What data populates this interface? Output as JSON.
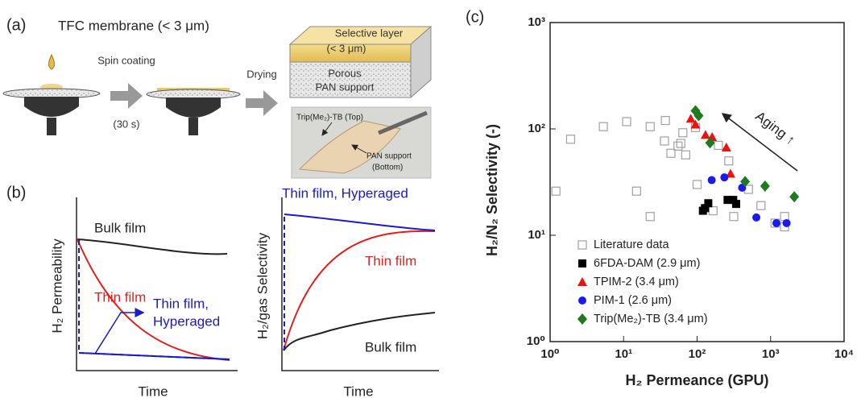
{
  "panel_a": {
    "label": "(a)",
    "title": "TFC membrane (< 3 μm)",
    "step1": "Spin coating",
    "step1_time": "(30 s)",
    "step2": "Drying",
    "layer_top": [
      "Selective layer",
      "(< 3 μm)"
    ],
    "layer_bottom": [
      "Porous",
      "PAN support"
    ],
    "photo_top": "Trip(Me₂)-TB (Top)",
    "photo_bottom": [
      "PAN support",
      "(Bottom)"
    ]
  },
  "panel_b": {
    "label": "(b)",
    "left": {
      "bulk": "Bulk film",
      "thin": "Thin film",
      "hyper": [
        "Thin film,",
        "Hyperaged"
      ],
      "ylabel": "H₂ Permeability",
      "xlabel": "Time"
    },
    "right": {
      "hyper": "Thin film, Hyperaged",
      "thin": "Thin film",
      "bulk": "Bulk film",
      "ylabel": "H₂/gas Selectivity",
      "xlabel": "Time"
    }
  },
  "panel_c": {
    "label": "(c)"
  },
  "chart_data": {
    "type": "scatter",
    "xlabel": "H₂ Permeance (GPU)",
    "ylabel": "H₂/N₂ Selectivity (-)",
    "xscale": "log",
    "yscale": "log",
    "legend": "lower left",
    "annotation": "Aging ↑",
    "xlim": [
      1,
      10000
    ],
    "ylim": [
      1,
      1000
    ],
    "xticks": [
      {
        "value": 1,
        "label": "10⁰"
      },
      {
        "value": 10,
        "label": "10¹"
      },
      {
        "value": 100,
        "label": "10²"
      },
      {
        "value": 1000,
        "label": "10³"
      },
      {
        "value": 10000,
        "label": "10⁴"
      }
    ],
    "yticks": [
      {
        "value": 1,
        "label": "10⁰"
      },
      {
        "value": 10,
        "label": "10¹"
      },
      {
        "value": 100,
        "label": "10²"
      },
      {
        "value": 1000,
        "label": "10³"
      }
    ],
    "series": [
      {
        "name": "Literature data",
        "color": "#a0a0a0",
        "marker": "square-open",
        "x": [
          1.2,
          1.9,
          5.3,
          11,
          15,
          23,
          23,
          37,
          36,
          44,
          55,
          60,
          70,
          64,
          95,
          100,
          165,
          195,
          270,
          315,
          500,
          740,
          1150,
          1550,
          1550
        ],
        "values": [
          26,
          80,
          105,
          117,
          26,
          15,
          105,
          120,
          77,
          59,
          69,
          73,
          57,
          92,
          103,
          30,
          17,
          70,
          50,
          15,
          27,
          19,
          13,
          12,
          15
        ]
      },
      {
        "name": "6FDA-DAM (2.9 μm)",
        "color": "#000000",
        "marker": "square",
        "x": [
          128,
          142,
          260,
          310,
          340,
          120
        ],
        "values": [
          18,
          20,
          21.5,
          21.5,
          19.7,
          17
        ]
      },
      {
        "name": "TPIM-2 (3.4 μm)",
        "color": "#ee1111",
        "marker": "triangle",
        "x": [
          82,
          95,
          130,
          160,
          250,
          285
        ],
        "values": [
          125,
          110,
          88,
          84,
          67,
          38
        ]
      },
      {
        "name": "PIM-1 (2.6 μm)",
        "color": "#1a1aee",
        "marker": "circle",
        "x": [
          158,
          235,
          410,
          640,
          1200,
          1650
        ],
        "values": [
          33,
          35,
          28,
          14.7,
          13,
          13
        ]
      },
      {
        "name": "Trip(Me₂)-TB (3.4 μm)",
        "color": "#1e7a1e",
        "marker": "diamond",
        "x": [
          95,
          105,
          150,
          450,
          840,
          2100
        ],
        "values": [
          148,
          133,
          74,
          32,
          29,
          23
        ]
      }
    ]
  }
}
